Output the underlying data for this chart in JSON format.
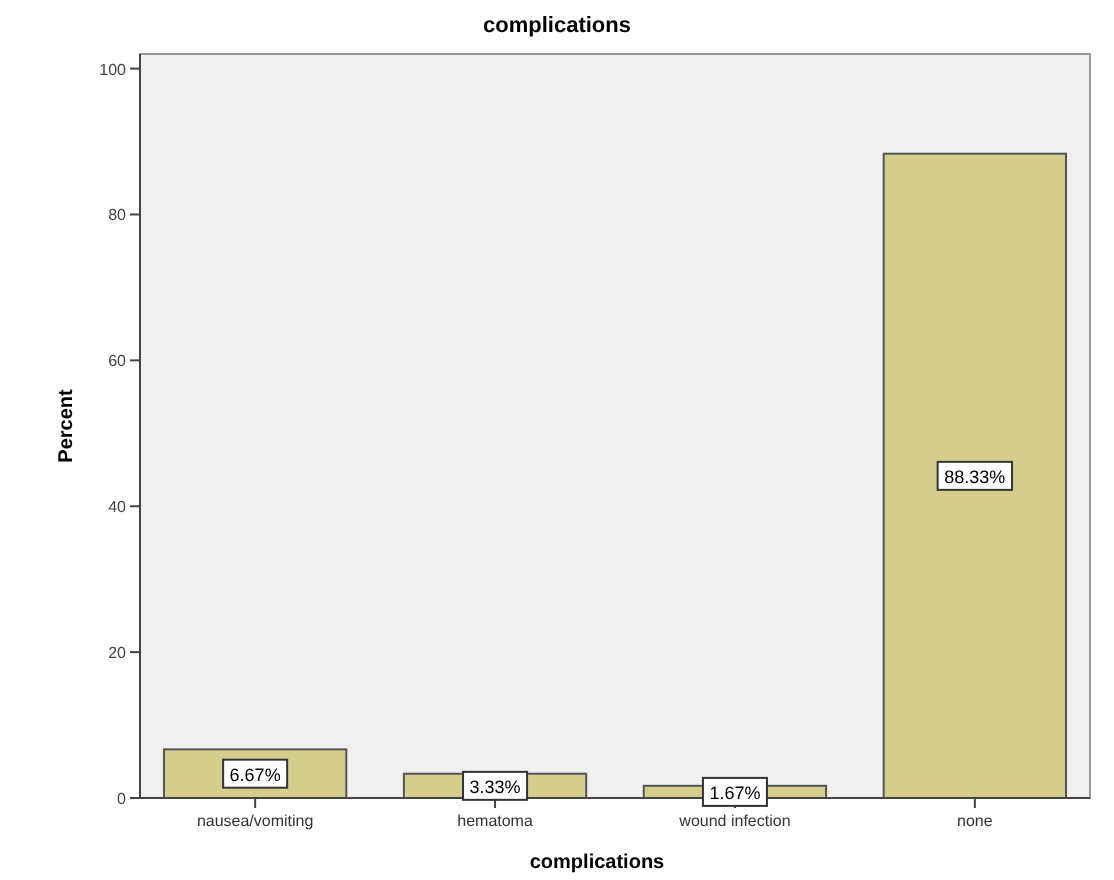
{
  "chart_data": {
    "type": "bar",
    "title": "complications",
    "xlabel": "complications",
    "ylabel": "Percent",
    "categories": [
      "nausea/vomiting",
      "hematoma",
      "wound infection",
      "none"
    ],
    "values": [
      6.67,
      3.33,
      1.67,
      88.33
    ],
    "value_labels": [
      "6.67%",
      "3.33%",
      "1.67%",
      "88.33%"
    ],
    "color": "#d4cd8c",
    "ylim": [
      0,
      102
    ],
    "yticks": [
      0,
      20,
      40,
      60,
      80,
      100
    ],
    "grid": false
  }
}
